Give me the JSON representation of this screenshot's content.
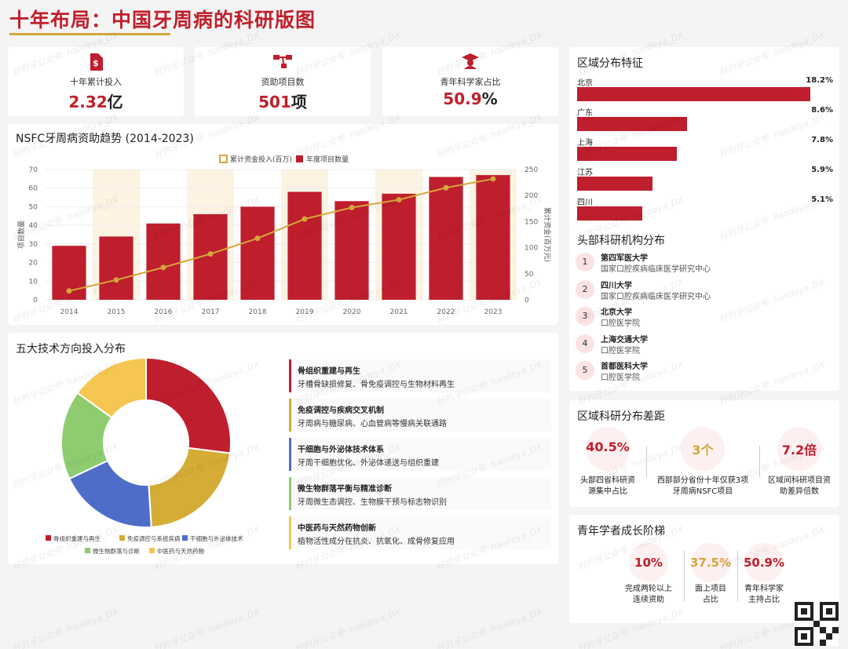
{
  "page": {
    "title": "十年布局：中国牙周病的科研版图",
    "watermark": "好的牙公众号: haodeya_DX"
  },
  "stats": [
    {
      "label": "十年累计投入",
      "value": "2.32",
      "unit": "亿",
      "icon": "money-document-icon"
    },
    {
      "label": "资助项目数",
      "value": "501",
      "unit": "项",
      "icon": "network-icon"
    },
    {
      "label": "青年科学家占比",
      "value": "50.9",
      "unit": "%",
      "icon": "graduate-icon"
    }
  ],
  "trend": {
    "heading": "NSFC牙周病资助趋势 (2014-2023)",
    "legend_line": "累计资金投入(百万)",
    "legend_bar": "年度项目数量"
  },
  "chart_data": [
    {
      "type": "bar",
      "title": "NSFC牙周病资助趋势 (2014-2023)",
      "categories": [
        "2014",
        "2015",
        "2016",
        "2017",
        "2018",
        "2019",
        "2020",
        "2021",
        "2022",
        "2023"
      ],
      "series": [
        {
          "name": "年度项目数量",
          "type": "bar",
          "axis": "left",
          "values": [
            29,
            34,
            41,
            46,
            50,
            58,
            53,
            57,
            66,
            67
          ]
        },
        {
          "name": "累计资金投入(百万)",
          "type": "line",
          "axis": "right",
          "values": [
            17,
            38,
            62,
            88,
            118,
            155,
            177,
            192,
            215,
            232
          ]
        }
      ],
      "ylabel": "项目数量",
      "y2label": "累计资金(百万元)",
      "ylim": [
        0,
        70
      ],
      "y2lim": [
        0,
        250
      ],
      "yticks": [
        0,
        10,
        20,
        30,
        40,
        50,
        60,
        70
      ],
      "y2ticks": [
        0,
        50,
        100,
        150,
        200,
        250
      ],
      "colors": {
        "bar": "#bf1e2d",
        "line": "#d4a73a",
        "stripe": "#fdf3e3"
      }
    },
    {
      "type": "pie",
      "title": "五大技术方向投入分布",
      "categories": [
        "骨组织重建与再生",
        "免疫调控与系统疾病",
        "干细胞与外泌体技术",
        "微生物群落与诊断",
        "中医药与天然药物"
      ],
      "values": [
        27,
        22,
        19,
        17,
        15
      ],
      "colors": [
        "#bf1e2d",
        "#d4ac36",
        "#4e6dc8",
        "#8fcc6f",
        "#f6c653"
      ],
      "legend_position": "bottom"
    },
    {
      "type": "bar",
      "title": "区域分布特征",
      "categories": [
        "北京",
        "广东",
        "上海",
        "江苏",
        "四川"
      ],
      "values": [
        18.2,
        8.6,
        7.8,
        5.9,
        5.1
      ],
      "value_labels": [
        "18.2%",
        "8.6%",
        "7.8%",
        "5.9%",
        "5.1%"
      ],
      "orientation": "horizontal",
      "color": "#bf1e2d"
    }
  ],
  "tech": {
    "heading": "五大技术方向投入分布",
    "items": [
      {
        "title": "骨组织重建与再生",
        "desc": "牙槽骨缺损修复、骨免疫调控与生物材料再生",
        "color": "#bf1e2d"
      },
      {
        "title": "免疫调控与疾病交叉机制",
        "desc": "牙周病与糖尿病、心血管病等慢病关联通路",
        "color": "#d4ac36"
      },
      {
        "title": "干细胞与外泌体技术体系",
        "desc": "牙周干细胞优化、外泌体递送与组织重建",
        "color": "#4e6dc8"
      },
      {
        "title": "微生物群落平衡与精准诊断",
        "desc": "牙周微生态调控、生物膜干预与标志物识别",
        "color": "#8fcc6f"
      },
      {
        "title": "中医药与天然药物创新",
        "desc": "植物活性成分在抗炎、抗氧化、成骨修复应用",
        "color": "#f6c653"
      }
    ]
  },
  "region": {
    "heading": "区域分布特征"
  },
  "institutions": {
    "heading": "头部科研机构分布",
    "items": [
      {
        "rank": "1",
        "name": "第四军医大学",
        "sub": "国家口腔疾病临床医学研究中心"
      },
      {
        "rank": "2",
        "name": "四川大学",
        "sub": "国家口腔疾病临床医学研究中心"
      },
      {
        "rank": "3",
        "name": "北京大学",
        "sub": "口腔医学院"
      },
      {
        "rank": "4",
        "name": "上海交通大学",
        "sub": "口腔医学院"
      },
      {
        "rank": "5",
        "name": "首都医科大学",
        "sub": "口腔医学院"
      }
    ]
  },
  "gap": {
    "heading": "区域科研分布差距",
    "items": [
      {
        "value": "40.5%",
        "line1": "头部四省科研资",
        "line2": "源集中占比",
        "color": "#bf1e2d"
      },
      {
        "value": "3个",
        "line1": "西部部分省份十年仅获3项",
        "line2": "牙周病NSFC项目",
        "color": "#d4a73a"
      },
      {
        "value": "7.2倍",
        "line1": "区域间科研项目资",
        "line2": "助差异倍数",
        "color": "#bf1e2d"
      }
    ]
  },
  "youth": {
    "heading": "青年学者成长阶梯",
    "items": [
      {
        "value": "10%",
        "line1": "完成两轮以上",
        "line2": "连续资助",
        "color": "#bf1e2d"
      },
      {
        "value": "37.5%",
        "line1": "面上项目",
        "line2": "占比",
        "color": "#d4a73a"
      },
      {
        "value": "50.9%",
        "line1": "青年科学家",
        "line2": "主持占比",
        "color": "#bf1e2d"
      }
    ]
  }
}
